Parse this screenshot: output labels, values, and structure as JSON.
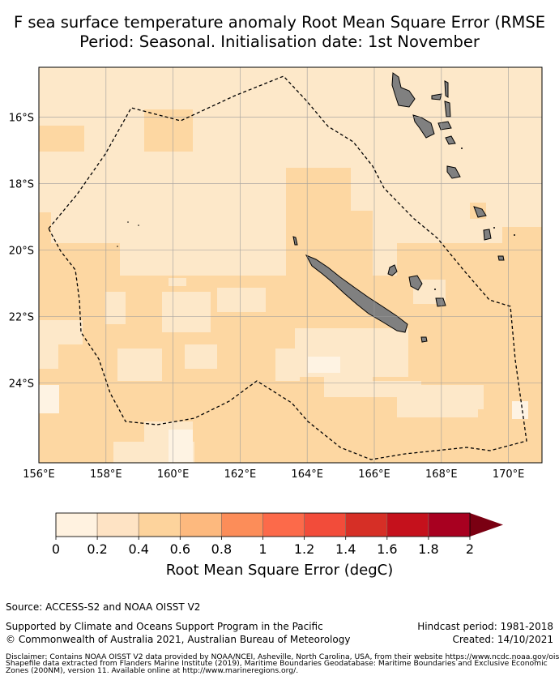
{
  "header": {
    "title_line1": "F sea surface temperature anomaly Root Mean Square Error (RMSE",
    "title_line2": "Period: Seasonal. Initialisation date: 1st November"
  },
  "map": {
    "lon_ticks": [
      156,
      158,
      160,
      162,
      164,
      166,
      168,
      170
    ],
    "lon_labels": [
      "156°E",
      "158°E",
      "160°E",
      "162°E",
      "164°E",
      "166°E",
      "168°E",
      "170°E"
    ],
    "lat_ticks": [
      -16,
      -18,
      -20,
      -22,
      -24
    ],
    "lat_labels": [
      "16°S",
      "18°S",
      "20°S",
      "22°S",
      "24°S"
    ],
    "extent": {
      "lon_min": 156,
      "lon_max": 171,
      "lat_min": -26.4,
      "lat_max": -14.5
    },
    "colors": {
      "ocean_low": "#fde8c9",
      "ocean_mid": "#fdd7a2",
      "ocean_pale": "#fef3e3",
      "land": "#808080",
      "grid": "#999999",
      "eez_boundary": "#000000"
    },
    "legend_text": ""
  },
  "colorbar": {
    "tick_values": [
      0,
      0.2,
      0.4,
      0.6,
      0.8,
      1,
      1.2,
      1.4,
      1.6,
      1.8,
      2
    ],
    "tick_labels": [
      "0",
      "0.2",
      "0.4",
      "0.6",
      "0.8",
      "1",
      "1.2",
      "1.4",
      "1.6",
      "1.8",
      "2"
    ],
    "colors": [
      "#fff2e0",
      "#fee3c4",
      "#fdd39c",
      "#fdb97e",
      "#fc8d59",
      "#fc6a4a",
      "#f24c3a",
      "#d62f26",
      "#c5111c",
      "#a80020"
    ],
    "extend_color": "#7a0012",
    "label": "Root Mean Square Error (degC)"
  },
  "footer": {
    "source": "Source: ACCESS-S2 and NOAA OISST V2",
    "supported": "Supported by Climate and Oceans Support Program in the Pacific",
    "copyright": "© Commonwealth of Australia 2021, Australian Bureau of Meteorology",
    "hindcast": "Hindcast period: 1981-2018",
    "created": "Created: 14/10/2021",
    "disclaimer_line1": "Disclaimer: Contains NOAA OISST V2 data provided by NOAA/NCEI, Asheville, North Carolina, USA, from their website https://www.ncdc.noaa.gov/oisst",
    "disclaimer_line2": "Shapefile data extracted from Flanders Marine Institute (2019), Maritime Boundaries Geodatabase: Maritime Boundaries and Exclusive Economic",
    "disclaimer_line3": "Zones (200NM), version 11. Available online at http://www.marineregions.org/."
  }
}
